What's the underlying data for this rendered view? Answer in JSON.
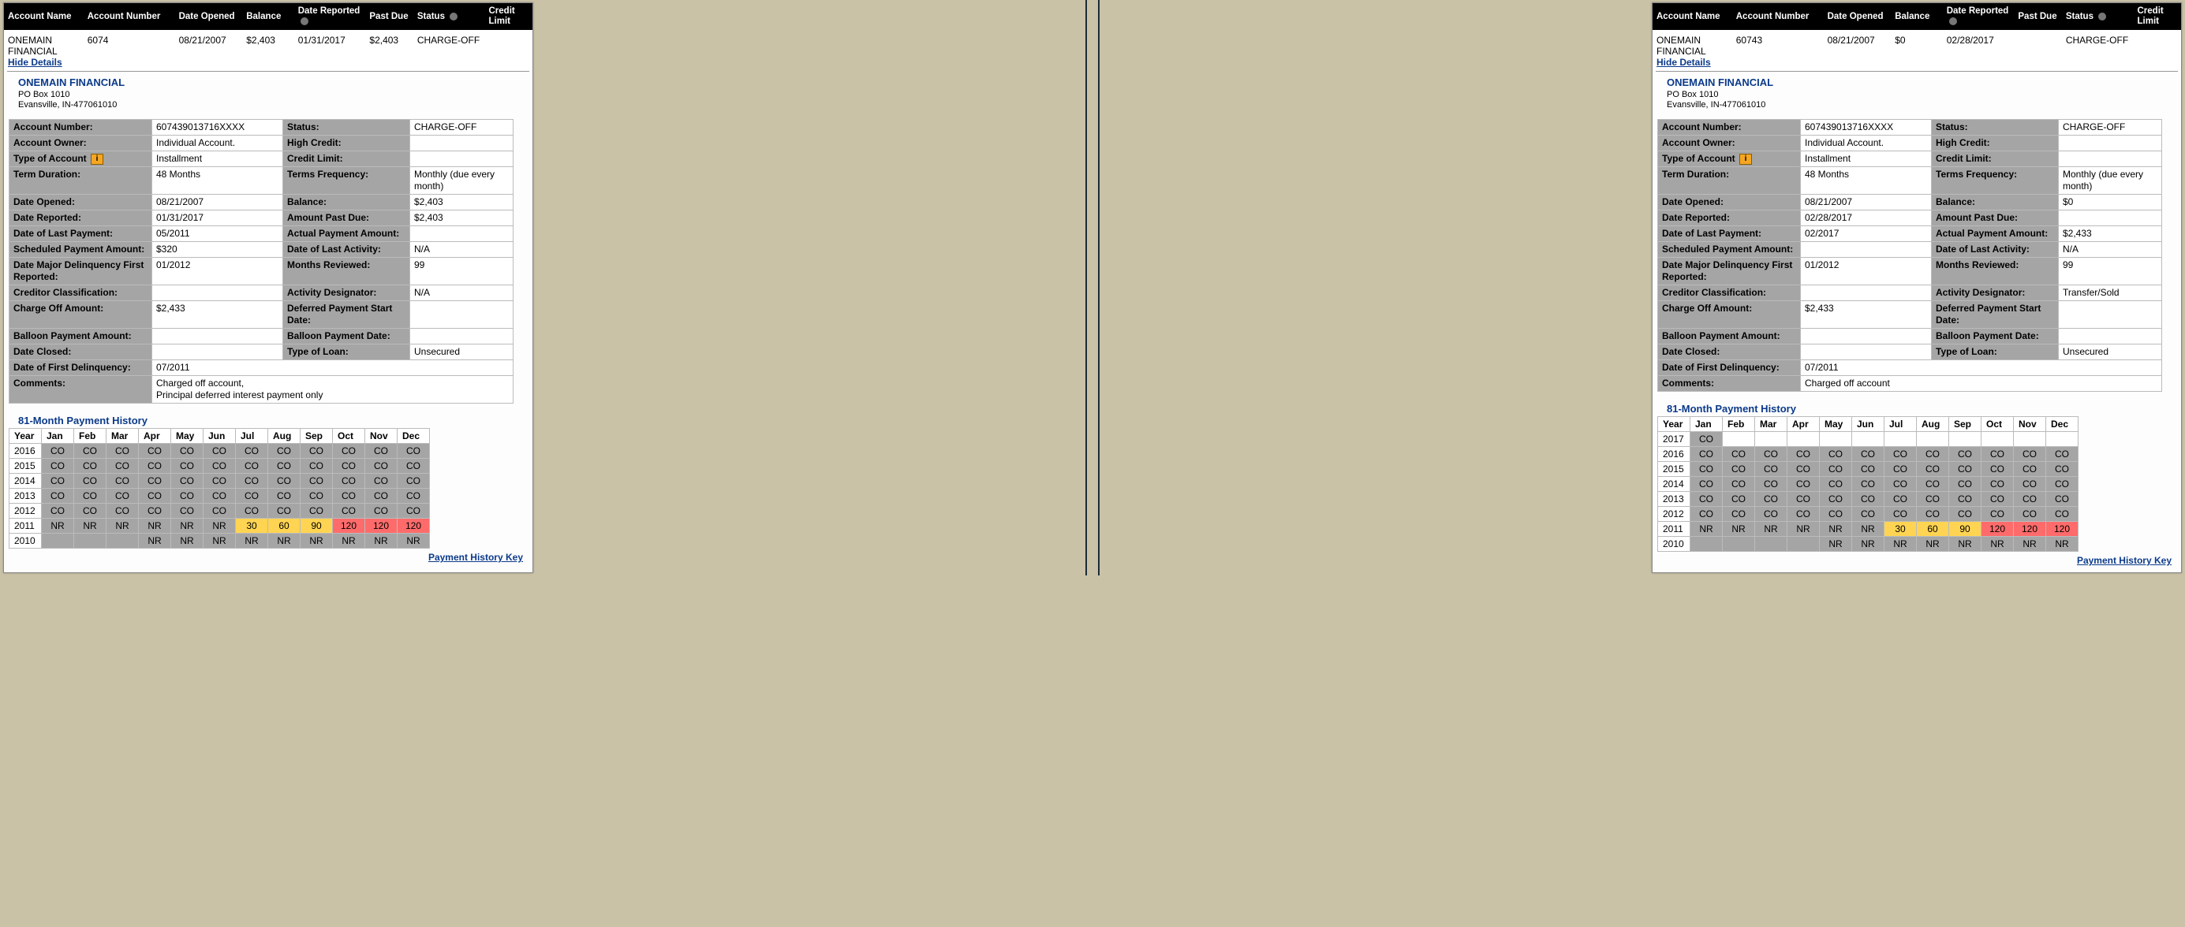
{
  "headers": {
    "account_name": "Account Name",
    "account_number": "Account Number",
    "date_opened": "Date Opened",
    "balance": "Balance",
    "date_reported": "Date Reported",
    "past_due": "Past Due",
    "status": "Status",
    "credit_limit": "Credit Limit"
  },
  "hide_details": "Hide Details",
  "creditor": {
    "name": "ONEMAIN FINANCIAL",
    "addr1": "PO Box 1010",
    "addr2": "Evansville, IN-477061010"
  },
  "detail_labels": {
    "account_number": "Account Number:",
    "account_owner": "Account Owner:",
    "type_of_account": "Type of Account",
    "term_duration": "Term Duration:",
    "date_opened": "Date Opened:",
    "date_reported": "Date Reported:",
    "date_last_payment": "Date of Last Payment:",
    "scheduled_payment": "Scheduled Payment Amount:",
    "date_major_delinq": "Date Major Delinquency First Reported:",
    "creditor_class": "Creditor Classification:",
    "charge_off_amount": "Charge Off Amount:",
    "balloon_amount": "Balloon Payment Amount:",
    "date_closed": "Date Closed:",
    "date_first_delinq": "Date of First Delinquency:",
    "comments": "Comments:",
    "status": "Status:",
    "high_credit": "High Credit:",
    "credit_limit": "Credit Limit:",
    "terms_freq": "Terms Frequency:",
    "balance": "Balance:",
    "amount_past_due": "Amount Past Due:",
    "actual_payment": "Actual Payment Amount:",
    "date_last_activity": "Date of Last Activity:",
    "months_reviewed": "Months Reviewed:",
    "activity_designator": "Activity Designator:",
    "deferred_start": "Deferred Payment Start Date:",
    "balloon_date": "Balloon Payment Date:",
    "type_of_loan": "Type of Loan:"
  },
  "colwidths": {
    "c1": 170,
    "c2": 155,
    "c3": 150,
    "c4": 120
  },
  "hist_title": "81-Month Payment History",
  "payment_history_key": "Payment History Key",
  "months": [
    "Year",
    "Jan",
    "Feb",
    "Mar",
    "Apr",
    "May",
    "Jun",
    "Jul",
    "Aug",
    "Sep",
    "Oct",
    "Nov",
    "Dec"
  ],
  "note": "i",
  "cell_colors": {
    "CO": "#a5a5a5",
    "NR": "#a5a5a5",
    "blank_gray": "#a5a5a5",
    "30": "#ffd452",
    "60": "#ffd452",
    "90": "#ffd452",
    "120": "#ff6b6b",
    "year": "#ffffff",
    "blank": "#ffffff"
  },
  "panels": [
    {
      "summary": {
        "name": "ONEMAIN FINANCIAL",
        "number": "6074",
        "opened": "08/21/2007",
        "balance": "$2,403",
        "reported": "01/31/2017",
        "past_due": "$2,403",
        "status": "CHARGE-OFF",
        "limit": ""
      },
      "details": {
        "account_number": "607439013716XXXX",
        "account_owner": "Individual Account.",
        "type_of_account": "Installment",
        "term_duration": "48 Months",
        "date_opened": "08/21/2007",
        "date_reported": "01/31/2017",
        "date_last_payment": "05/2011",
        "scheduled_payment": "$320",
        "date_major_delinq": "01/2012",
        "creditor_class": "",
        "charge_off_amount": "$2,433",
        "balloon_amount": "",
        "date_closed": "",
        "date_first_delinq": "07/2011",
        "comments": "Charged off account,\nPrincipal deferred interest payment only",
        "status": "CHARGE-OFF",
        "high_credit": "",
        "credit_limit": "",
        "terms_freq": "Monthly (due every month)",
        "balance": "$2,403",
        "amount_past_due": "$2,403",
        "actual_payment": "",
        "date_last_activity": "N/A",
        "months_reviewed": "99",
        "activity_designator": "N/A",
        "deferred_start": "",
        "balloon_date": "",
        "type_of_loan": "Unsecured"
      },
      "history": [
        [
          "2016",
          "CO",
          "CO",
          "CO",
          "CO",
          "CO",
          "CO",
          "CO",
          "CO",
          "CO",
          "CO",
          "CO",
          "CO"
        ],
        [
          "2015",
          "CO",
          "CO",
          "CO",
          "CO",
          "CO",
          "CO",
          "CO",
          "CO",
          "CO",
          "CO",
          "CO",
          "CO"
        ],
        [
          "2014",
          "CO",
          "CO",
          "CO",
          "CO",
          "CO",
          "CO",
          "CO",
          "CO",
          "CO",
          "CO",
          "CO",
          "CO"
        ],
        [
          "2013",
          "CO",
          "CO",
          "CO",
          "CO",
          "CO",
          "CO",
          "CO",
          "CO",
          "CO",
          "CO",
          "CO",
          "CO"
        ],
        [
          "2012",
          "CO",
          "CO",
          "CO",
          "CO",
          "CO",
          "CO",
          "CO",
          "CO",
          "CO",
          "CO",
          "CO",
          "CO"
        ],
        [
          "2011",
          "NR",
          "NR",
          "NR",
          "NR",
          "NR",
          "NR",
          "30",
          "60",
          "90",
          "120",
          "120",
          "120"
        ],
        [
          "2010",
          "",
          "",
          "",
          "NR",
          "NR",
          "NR",
          "NR",
          "NR",
          "NR",
          "NR",
          "NR",
          "NR"
        ]
      ]
    },
    {
      "summary": {
        "name": "ONEMAIN FINANCIAL",
        "number": "60743",
        "opened": "08/21/2007",
        "balance": "$0",
        "reported": "02/28/2017",
        "past_due": "",
        "status": "CHARGE-OFF",
        "limit": ""
      },
      "details": {
        "account_number": "607439013716XXXX",
        "account_owner": "Individual Account.",
        "type_of_account": "Installment",
        "term_duration": "48 Months",
        "date_opened": "08/21/2007",
        "date_reported": "02/28/2017",
        "date_last_payment": "02/2017",
        "scheduled_payment": "",
        "date_major_delinq": "01/2012",
        "creditor_class": "",
        "charge_off_amount": "$2,433",
        "balloon_amount": "",
        "date_closed": "",
        "date_first_delinq": "07/2011",
        "comments": "Charged off account",
        "status": "CHARGE-OFF",
        "high_credit": "",
        "credit_limit": "",
        "terms_freq": "Monthly (due every month)",
        "balance": "$0",
        "amount_past_due": "",
        "actual_payment": "$2,433",
        "date_last_activity": "N/A",
        "months_reviewed": "99",
        "activity_designator": "Transfer/Sold",
        "deferred_start": "",
        "balloon_date": "",
        "type_of_loan": "Unsecured"
      },
      "history": [
        [
          "2017",
          "CO",
          "",
          "",
          "",
          "",
          "",
          "",
          "",
          "",
          "",
          "",
          ""
        ],
        [
          "2016",
          "CO",
          "CO",
          "CO",
          "CO",
          "CO",
          "CO",
          "CO",
          "CO",
          "CO",
          "CO",
          "CO",
          "CO"
        ],
        [
          "2015",
          "CO",
          "CO",
          "CO",
          "CO",
          "CO",
          "CO",
          "CO",
          "CO",
          "CO",
          "CO",
          "CO",
          "CO"
        ],
        [
          "2014",
          "CO",
          "CO",
          "CO",
          "CO",
          "CO",
          "CO",
          "CO",
          "CO",
          "CO",
          "CO",
          "CO",
          "CO"
        ],
        [
          "2013",
          "CO",
          "CO",
          "CO",
          "CO",
          "CO",
          "CO",
          "CO",
          "CO",
          "CO",
          "CO",
          "CO",
          "CO"
        ],
        [
          "2012",
          "CO",
          "CO",
          "CO",
          "CO",
          "CO",
          "CO",
          "CO",
          "CO",
          "CO",
          "CO",
          "CO",
          "CO"
        ],
        [
          "2011",
          "NR",
          "NR",
          "NR",
          "NR",
          "NR",
          "NR",
          "30",
          "60",
          "90",
          "120",
          "120",
          "120"
        ],
        [
          "2010",
          "",
          "",
          "",
          "",
          "NR",
          "NR",
          "NR",
          "NR",
          "NR",
          "NR",
          "NR",
          "NR"
        ]
      ]
    }
  ]
}
